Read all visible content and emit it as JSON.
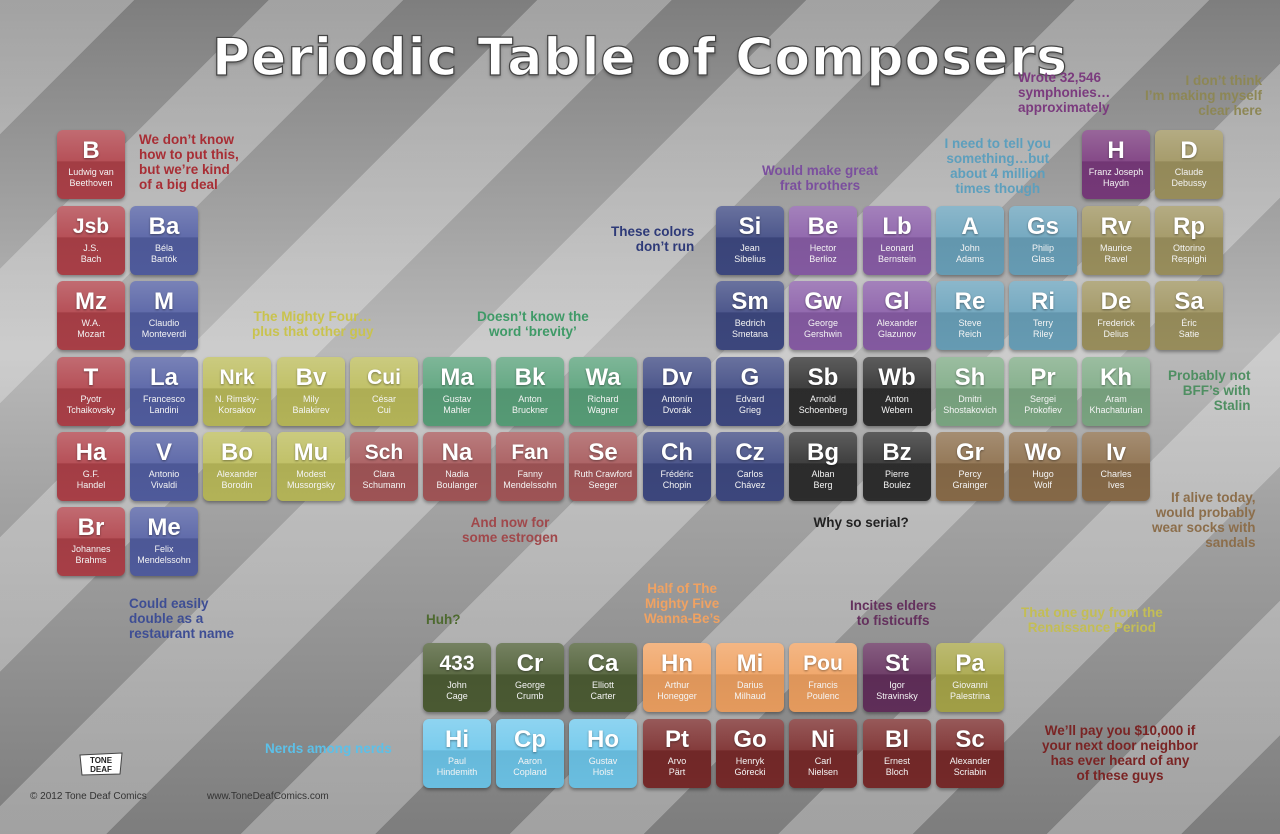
{
  "title": "Periodic Table of Composers",
  "colors": {
    "red": "#b0424a",
    "blue": "#535fa3",
    "yellow": "#bcbc5c",
    "green": "#5aa27b",
    "navy": "#3f4a83",
    "purple": "#8a5ea8",
    "black": "#2f2f2f",
    "lightgreen": "#7fab86",
    "tan": "#9f9460",
    "brown": "#8c6e4b",
    "teal": "#6ba3bc",
    "magenta": "#7b3b7e",
    "olive": "#4e5e35",
    "orange": "#f0a262",
    "violet": "#64305d",
    "khaki": "#a9a74a",
    "sky": "#6fc8ec",
    "maroon": "#7a2b2b",
    "rose": "#a6585a"
  },
  "tiles": [
    {
      "symbol": "B",
      "name": "Ludwig van\nBeethoven",
      "color": "red"
    },
    {
      "symbol": "Jsb",
      "name": "J.S.\nBach",
      "color": "red"
    },
    {
      "symbol": "Ba",
      "name": "Béla\nBartók",
      "color": "blue"
    },
    {
      "symbol": "Mz",
      "name": "W.A.\nMozart",
      "color": "red"
    },
    {
      "symbol": "M",
      "name": "Claudio\nMonteverdi",
      "color": "blue"
    },
    {
      "symbol": "T",
      "name": "Pyotr\nTchaikovsky",
      "color": "red"
    },
    {
      "symbol": "La",
      "name": "Francesco\nLandini",
      "color": "blue"
    },
    {
      "symbol": "Nrk",
      "name": "N. Rimsky-\nKorsakov",
      "color": "yellow"
    },
    {
      "symbol": "Bv",
      "name": "Mily\nBalakirev",
      "color": "yellow"
    },
    {
      "symbol": "Cui",
      "name": "César\nCui",
      "color": "yellow"
    },
    {
      "symbol": "Ma",
      "name": "Gustav\nMahler",
      "color": "green"
    },
    {
      "symbol": "Bk",
      "name": "Anton\nBruckner",
      "color": "green"
    },
    {
      "symbol": "Wa",
      "name": "Richard\nWagner",
      "color": "green"
    },
    {
      "symbol": "Dv",
      "name": "Antonín\nDvorák",
      "color": "navy"
    },
    {
      "symbol": "G",
      "name": "Edvard\nGrieg",
      "color": "navy"
    },
    {
      "symbol": "Sb",
      "name": "Arnold\nSchoenberg",
      "color": "black"
    },
    {
      "symbol": "Wb",
      "name": "Anton\nWebern",
      "color": "black"
    },
    {
      "symbol": "Sh",
      "name": "Dmitri\nShostakovich",
      "color": "lightgreen"
    },
    {
      "symbol": "Pr",
      "name": "Sergei\nProkofiev",
      "color": "lightgreen"
    },
    {
      "symbol": "Kh",
      "name": "Aram\nKhachaturian",
      "color": "lightgreen"
    },
    {
      "symbol": "Ha",
      "name": "G.F.\nHandel",
      "color": "red"
    },
    {
      "symbol": "V",
      "name": "Antonio\nVivaldi",
      "color": "blue"
    },
    {
      "symbol": "Bo",
      "name": "Alexander\nBorodin",
      "color": "yellow"
    },
    {
      "symbol": "Mu",
      "name": "Modest\nMussorgsky",
      "color": "yellow"
    },
    {
      "symbol": "Sch",
      "name": "Clara\nSchumann",
      "color": "rose"
    },
    {
      "symbol": "Na",
      "name": "Nadia\nBoulanger",
      "color": "rose"
    },
    {
      "symbol": "Fan",
      "name": "Fanny\nMendelssohn",
      "color": "rose"
    },
    {
      "symbol": "Se",
      "name": "Ruth Crawford\nSeeger",
      "color": "rose"
    },
    {
      "symbol": "Ch",
      "name": "Frédéric\nChopin",
      "color": "navy"
    },
    {
      "symbol": "Cz",
      "name": "Carlos\nChávez",
      "color": "navy"
    },
    {
      "symbol": "Bg",
      "name": "Alban\nBerg",
      "color": "black"
    },
    {
      "symbol": "Bz",
      "name": "Pierre\nBoulez",
      "color": "black"
    },
    {
      "symbol": "Gr",
      "name": "Percy\nGrainger",
      "color": "brown"
    },
    {
      "symbol": "Wo",
      "name": "Hugo\nWolf",
      "color": "brown"
    },
    {
      "symbol": "Iv",
      "name": "Charles\nIves",
      "color": "brown"
    },
    {
      "symbol": "Br",
      "name": "Johannes\nBrahms",
      "color": "red"
    },
    {
      "symbol": "Me",
      "name": "Felix\nMendelssohn",
      "color": "blue"
    },
    {
      "symbol": "Si",
      "name": "Jean\nSibelius",
      "color": "navy"
    },
    {
      "symbol": "Be",
      "name": "Hector\nBerlioz",
      "color": "purple"
    },
    {
      "symbol": "Lb",
      "name": "Leonard\nBernstein",
      "color": "purple"
    },
    {
      "symbol": "A",
      "name": "John\nAdams",
      "color": "teal"
    },
    {
      "symbol": "Gs",
      "name": "Philip\nGlass",
      "color": "teal"
    },
    {
      "symbol": "Rv",
      "name": "Maurice\nRavel",
      "color": "tan"
    },
    {
      "symbol": "Rp",
      "name": "Ottorino\nRespighi",
      "color": "tan"
    },
    {
      "symbol": "Sm",
      "name": "Bedrich\nSmetana",
      "color": "navy"
    },
    {
      "symbol": "Gw",
      "name": "George\nGershwin",
      "color": "purple"
    },
    {
      "symbol": "Gl",
      "name": "Alexander\nGlazunov",
      "color": "purple"
    },
    {
      "symbol": "Re",
      "name": "Steve\nReich",
      "color": "teal"
    },
    {
      "symbol": "Ri",
      "name": "Terry\nRiley",
      "color": "teal"
    },
    {
      "symbol": "De",
      "name": "Frederick\nDelius",
      "color": "tan"
    },
    {
      "symbol": "Sa",
      "name": "Éric\nSatie",
      "color": "tan"
    },
    {
      "symbol": "H",
      "name": "Franz Joseph\nHaydn",
      "color": "magenta"
    },
    {
      "symbol": "D",
      "name": "Claude\nDebussy",
      "color": "tan"
    },
    {
      "symbol": "433",
      "name": "John\nCage",
      "color": "olive"
    },
    {
      "symbol": "Cr",
      "name": "George\nCrumb",
      "color": "olive"
    },
    {
      "symbol": "Ca",
      "name": "Elliott\nCarter",
      "color": "olive"
    },
    {
      "symbol": "Hn",
      "name": "Arthur\nHonegger",
      "color": "orange"
    },
    {
      "symbol": "Mi",
      "name": "Darius\nMilhaud",
      "color": "orange"
    },
    {
      "symbol": "Pou",
      "name": "Francis\nPoulenc",
      "color": "orange"
    },
    {
      "symbol": "St",
      "name": "Igor\nStravinsky",
      "color": "violet"
    },
    {
      "symbol": "Pa",
      "name": "Giovanni\nPalestrina",
      "color": "khaki"
    },
    {
      "symbol": "Hi",
      "name": "Paul\nHindemith",
      "color": "sky"
    },
    {
      "symbol": "Cp",
      "name": "Aaron\nCopland",
      "color": "sky"
    },
    {
      "symbol": "Ho",
      "name": "Gustav\nHolst",
      "color": "sky"
    },
    {
      "symbol": "Pt",
      "name": "Arvo\nPärt",
      "color": "maroon"
    },
    {
      "symbol": "Go",
      "name": "Henryk\nGórecki",
      "color": "maroon"
    },
    {
      "symbol": "Ni",
      "name": "Carl\nNielsen",
      "color": "maroon"
    },
    {
      "symbol": "Bl",
      "name": "Ernest\nBloch",
      "color": "maroon"
    },
    {
      "symbol": "Sc",
      "name": "Alexander\nScriabin",
      "color": "maroon"
    }
  ],
  "notes": [
    {
      "text": "We don’t know\nhow to put this,\nbut we’re kind\nof a big deal",
      "color": "#a82e35"
    },
    {
      "text": "Wrote 32,546\nsymphonies…\napproximately",
      "color": "#7b3b7e"
    },
    {
      "text": "I don’t think\nI’m making myself\nclear here",
      "color": "#8d8755"
    },
    {
      "text": "I need to tell you\nsomething…but\nabout 4 million\ntimes though",
      "color": "#5d9fbd"
    },
    {
      "text": "Would make great\nfrat brothers",
      "color": "#7b4f9e"
    },
    {
      "text": "These colors\ndon’t run",
      "color": "#2e3a78"
    },
    {
      "text": "The Mighty Four…\nplus that other guy",
      "color": "#c9c34e"
    },
    {
      "text": "Doesn’t know the\nword ‘brevity’",
      "color": "#3f9a67"
    },
    {
      "text": "Probably not\nBFF’s with\nStalin",
      "color": "#4f8f62"
    },
    {
      "text": "If alive today,\nwould probably\nwear socks with\nsandals",
      "color": "#8c6e4b"
    },
    {
      "text": "And now for\nsome estrogen",
      "color": "#a0484b"
    },
    {
      "text": "Why so serial?",
      "color": "#222222"
    },
    {
      "text": "Could easily\ndouble as a\nrestaurant name",
      "color": "#3e4e94"
    },
    {
      "text": "Huh?",
      "color": "#4e6a30"
    },
    {
      "text": "Half of The\nMighty Five\nWanna-Be’s",
      "color": "#f0a262"
    },
    {
      "text": "Incites elders\nto fisticuffs",
      "color": "#64305d"
    },
    {
      "text": "That one guy from the\nRenaissance Period",
      "color": "#c3bd55"
    },
    {
      "text": "Nerds among nerds",
      "color": "#5cc0e8"
    },
    {
      "text": "We’ll pay you $10,000 if\nyour next door neighbor\nhas ever heard of any\nof these guys",
      "color": "#7a2424"
    }
  ],
  "footer": {
    "logo_text": "TONE DEAF",
    "copyright": "© 2012 Tone Deaf Comics",
    "url": "www.ToneDeafComics.com"
  }
}
